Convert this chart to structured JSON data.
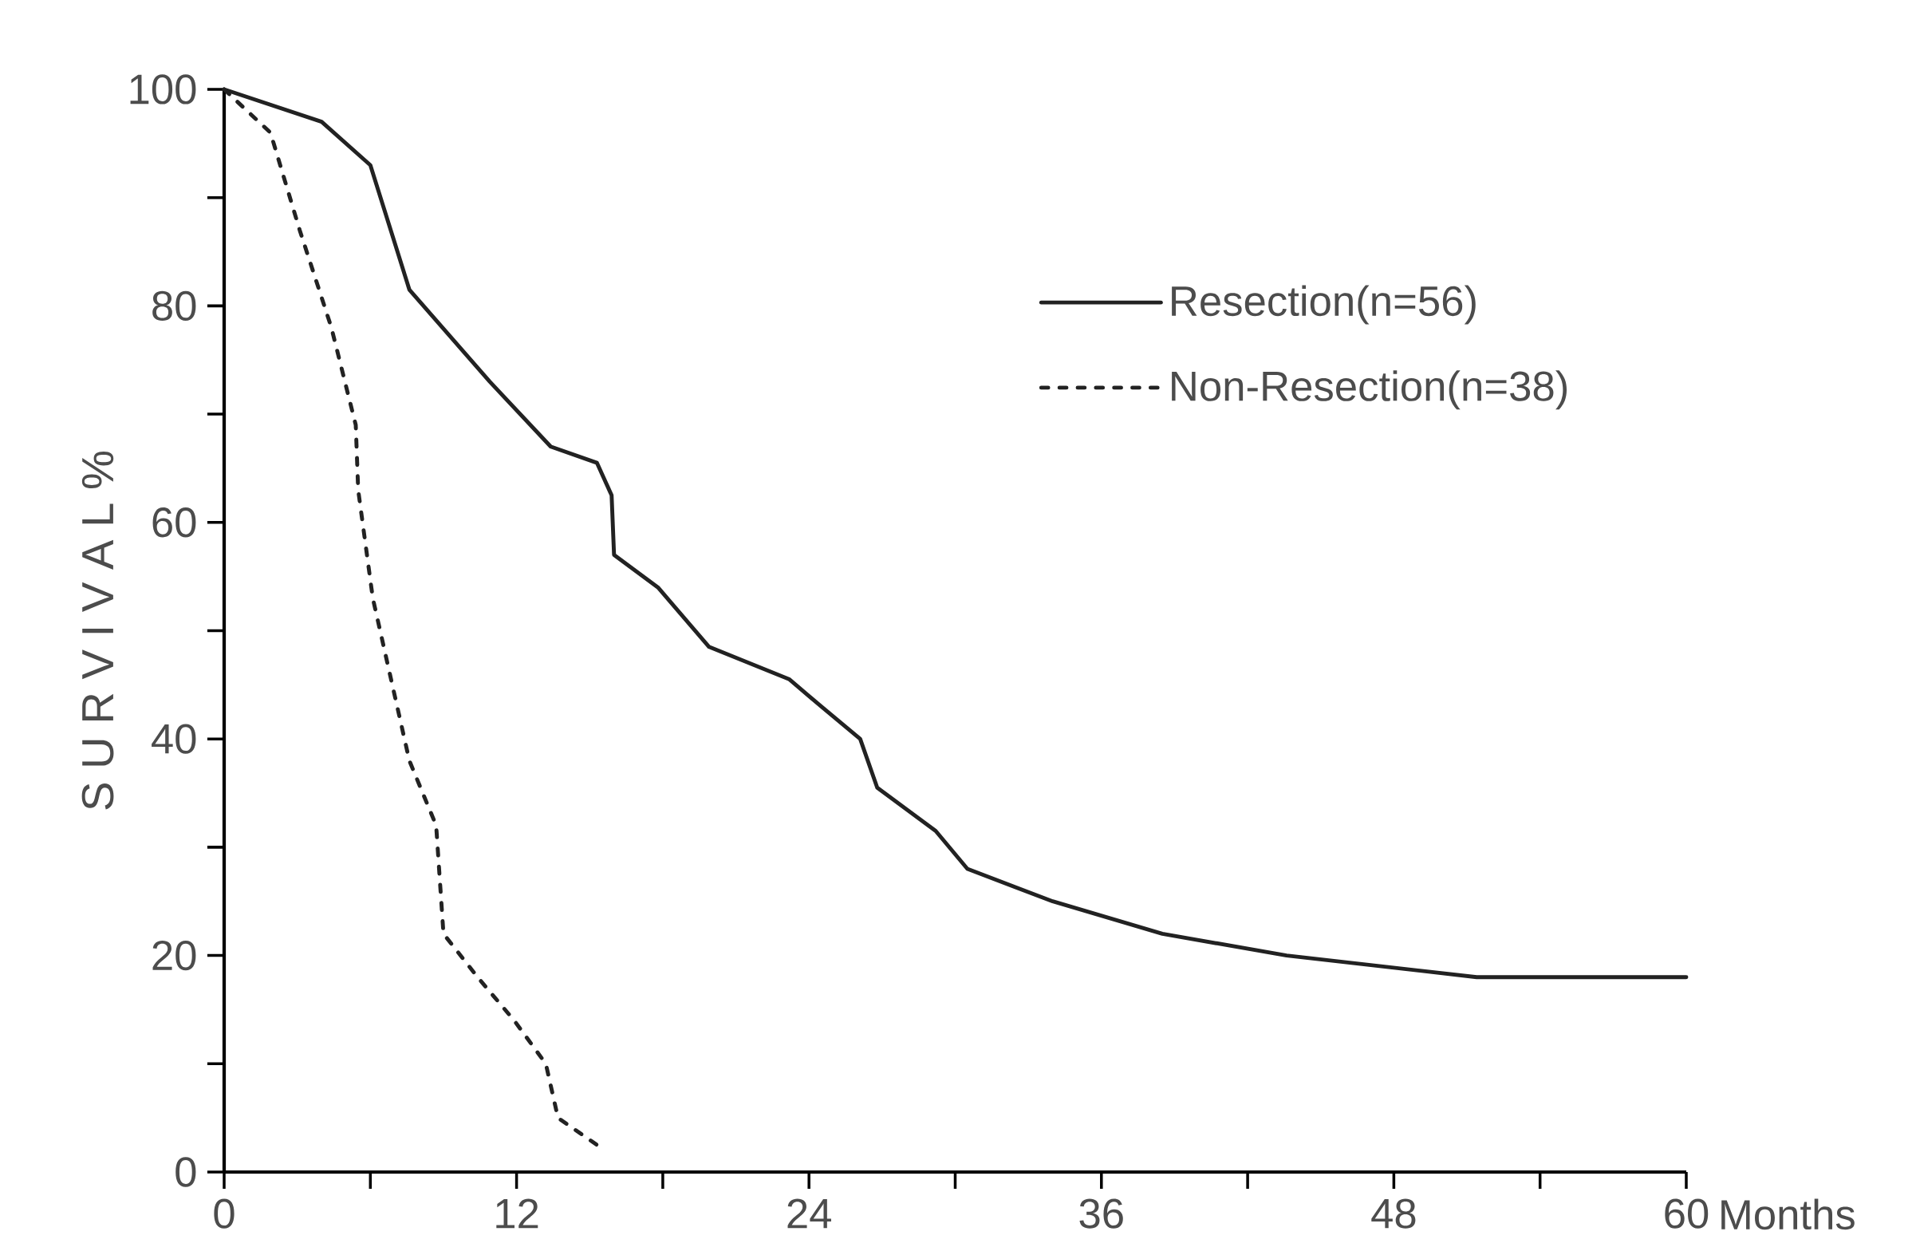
{
  "chart_data": {
    "type": "line",
    "xlabel": "Months",
    "ylabel": "S U R V I V A L %",
    "xlim": [
      0,
      60
    ],
    "ylim": [
      0,
      100
    ],
    "xticks": [
      0,
      12,
      24,
      36,
      48,
      60
    ],
    "yticks": [
      0,
      20,
      40,
      60,
      80,
      100
    ],
    "legend": "top right",
    "grid": false,
    "marker": "none",
    "series": [
      {
        "name": "Resection(n=56)",
        "color": "#222222",
        "line_style": "solid",
        "x": [
          0,
          4,
          6,
          7.6,
          10.9,
          13.4,
          15.3,
          15.9,
          16,
          17.8,
          19.9,
          23.2,
          24.5,
          26.1,
          26.8,
          29.2,
          30.5,
          34,
          38.5,
          43.6,
          51.4,
          60
        ],
        "values": [
          100,
          97,
          93,
          81.5,
          73,
          67,
          65.5,
          62.5,
          57,
          54,
          48.5,
          45.5,
          43,
          40,
          35.5,
          31.5,
          28,
          25,
          22,
          20,
          18,
          18
        ]
      },
      {
        "name": "Non-Resection(n=38)",
        "color": "#222222",
        "line_style": "dotted",
        "x": [
          0,
          1.9,
          3.1,
          4.4,
          5.4,
          5.5,
          6.1,
          6.9,
          7.6,
          8.7,
          9,
          10.4,
          11.9,
          13.2,
          13.7,
          15.3
        ],
        "values": [
          100,
          96,
          87,
          78,
          69,
          63,
          53,
          45,
          38,
          32,
          22,
          18,
          14,
          10,
          5,
          2.5
        ]
      }
    ]
  }
}
